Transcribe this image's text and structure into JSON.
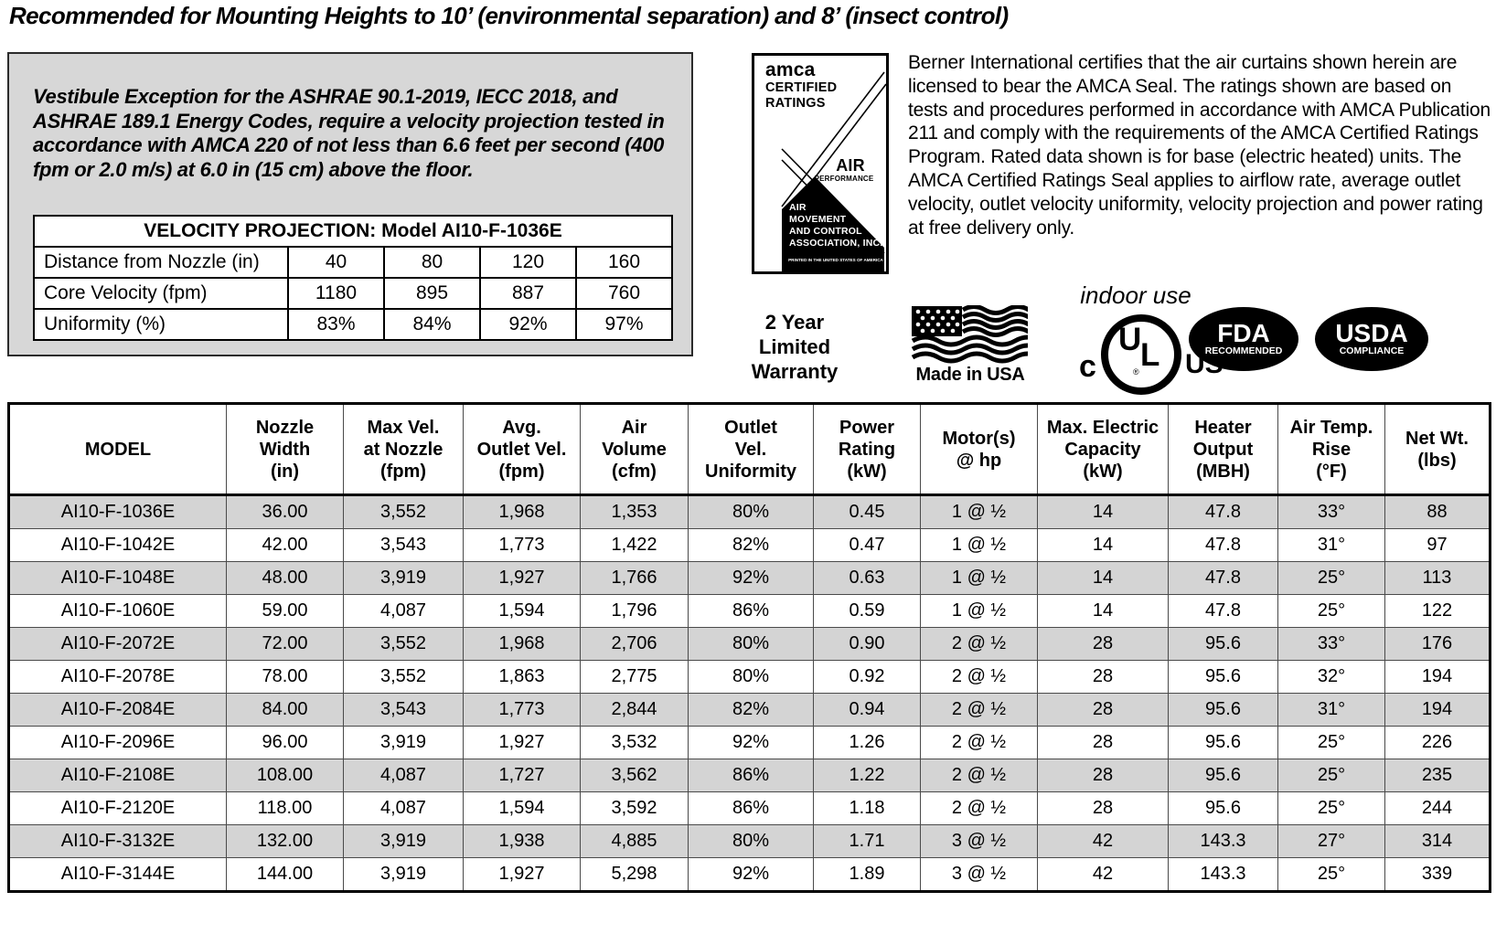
{
  "title": "Recommended for Mounting Heights to 10’ (environmental separation) and 8’ (insect control)",
  "vestibule_note": "Vestibule Exception for the ASHRAE 90.1-2019, IECC 2018, and ASHRAE 189.1 Energy Codes, require a velocity projection tested in accordance with AMCA 220 of not less than 6.6 feet per second (400 fpm or 2.0 m/s) at 6.0 in (15 cm) above the floor.",
  "velocity_table": {
    "title": "VELOCITY PROJECTION: Model AI10-F-1036E",
    "rows": [
      {
        "label": "Distance from Nozzle (in)",
        "values": [
          "40",
          "80",
          "120",
          "160"
        ]
      },
      {
        "label": "Core Velocity (fpm)",
        "values": [
          "1180",
          "895",
          "887",
          "760"
        ]
      },
      {
        "label": "Uniformity (%)",
        "values": [
          "83%",
          "84%",
          "92%",
          "97%"
        ]
      }
    ]
  },
  "amca_seal": {
    "brand": "amca",
    "certified": "CERTIFIED",
    "ratings": "RATINGS",
    "air": "AIR",
    "performance": "PERFORMANCE",
    "org": "AIR\nMOVEMENT\nAND CONTROL\nASSOCIATION, INC.",
    "footer": "PRINTED IN THE UNITED STATES OF AMERICA"
  },
  "certification_text": "Berner International certifies that the air curtains shown herein are licensed to bear the AMCA Seal. The ratings shown are based on tests and procedures performed in accordance with AMCA Publication 211 and comply with the requirements of the AMCA Certified Ratings Program. Rated data shown is for base (electric heated) units. The AMCA Certified Ratings Seal applies to airflow rate, average outlet velocity, outlet velocity uniformity, velocity projection and power rating at free delivery only.",
  "badges": {
    "warranty": "2 Year\nLimited\nWarranty",
    "made_in_usa": "Made in USA",
    "indoor_use": "indoor use",
    "ul_c": "c",
    "ul_u": "U",
    "ul_l": "L",
    "ul_reg": "®",
    "ul_us": "US",
    "fda_title": "FDA",
    "fda_sub": "RECOMMENDED",
    "usda_title": "USDA",
    "usda_sub": "COMPLIANCE"
  },
  "spec_table": {
    "headers": [
      "MODEL",
      "Nozzle\nWidth\n(in)",
      "Max Vel.\nat Nozzle\n(fpm)",
      "Avg.\nOutlet Vel.\n(fpm)",
      "Air\nVolume\n(cfm)",
      "Outlet\nVel.\nUniformity",
      "Power\nRating\n(kW)",
      "Motor(s)\n@ hp",
      "Max. Electric\nCapacity\n(kW)",
      "Heater\nOutput\n(MBH)",
      "Air Temp.\nRise\n(°F)",
      "Net Wt.\n(lbs)"
    ],
    "rows": [
      [
        "AI10-F-1036E",
        "36.00",
        "3,552",
        "1,968",
        "1,353",
        "80%",
        "0.45",
        "1 @ ½",
        "14",
        "47.8",
        "33°",
        "88"
      ],
      [
        "AI10-F-1042E",
        "42.00",
        "3,543",
        "1,773",
        "1,422",
        "82%",
        "0.47",
        "1 @ ½",
        "14",
        "47.8",
        "31°",
        "97"
      ],
      [
        "AI10-F-1048E",
        "48.00",
        "3,919",
        "1,927",
        "1,766",
        "92%",
        "0.63",
        "1 @ ½",
        "14",
        "47.8",
        "25°",
        "113"
      ],
      [
        "AI10-F-1060E",
        "59.00",
        "4,087",
        "1,594",
        "1,796",
        "86%",
        "0.59",
        "1 @ ½",
        "14",
        "47.8",
        "25°",
        "122"
      ],
      [
        "AI10-F-2072E",
        "72.00",
        "3,552",
        "1,968",
        "2,706",
        "80%",
        "0.90",
        "2 @ ½",
        "28",
        "95.6",
        "33°",
        "176"
      ],
      [
        "AI10-F-2078E",
        "78.00",
        "3,552",
        "1,863",
        "2,775",
        "80%",
        "0.92",
        "2 @ ½",
        "28",
        "95.6",
        "32°",
        "194"
      ],
      [
        "AI10-F-2084E",
        "84.00",
        "3,543",
        "1,773",
        "2,844",
        "82%",
        "0.94",
        "2 @ ½",
        "28",
        "95.6",
        "31°",
        "194"
      ],
      [
        "AI10-F-2096E",
        "96.00",
        "3,919",
        "1,927",
        "3,532",
        "92%",
        "1.26",
        "2 @ ½",
        "28",
        "95.6",
        "25°",
        "226"
      ],
      [
        "AI10-F-2108E",
        "108.00",
        "4,087",
        "1,727",
        "3,562",
        "86%",
        "1.22",
        "2 @ ½",
        "28",
        "95.6",
        "25°",
        "235"
      ],
      [
        "AI10-F-2120E",
        "118.00",
        "4,087",
        "1,594",
        "3,592",
        "86%",
        "1.18",
        "2 @ ½",
        "28",
        "95.6",
        "25°",
        "244"
      ],
      [
        "AI10-F-3132E",
        "132.00",
        "3,919",
        "1,938",
        "4,885",
        "80%",
        "1.71",
        "3 @ ½",
        "42",
        "143.3",
        "27°",
        "314"
      ],
      [
        "AI10-F-3144E",
        "144.00",
        "3,919",
        "1,927",
        "5,298",
        "92%",
        "1.89",
        "3 @ ½",
        "42",
        "143.3",
        "25°",
        "339"
      ]
    ]
  },
  "colors": {
    "row_shade": "#d4d4d4",
    "box_bg": "#d7d7d7",
    "ink": "#000000"
  }
}
